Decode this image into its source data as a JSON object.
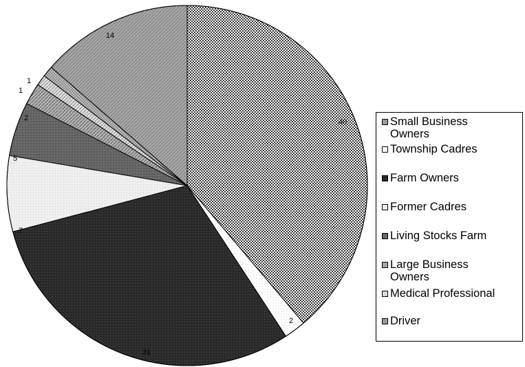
{
  "chart_data": {
    "type": "pie",
    "slices": [
      {
        "label": "Small Business Owners",
        "value": 40,
        "value_label": "40"
      },
      {
        "label": "Township Cadres",
        "value": 2,
        "value_label": "2"
      },
      {
        "label": "Farm Owners",
        "value": 31,
        "value_label": "31"
      },
      {
        "label": "Former Cadres",
        "value": 7,
        "value_label": "7"
      },
      {
        "label": "Living Stocks Farm",
        "value": 5,
        "value_label": "5"
      },
      {
        "label": "Large Business Owners",
        "value": 2,
        "value_label": "2"
      },
      {
        "label": "Medical Professional",
        "value": 1,
        "value_label": "1"
      },
      {
        "label": "Driver",
        "value": 1,
        "value_label": "1"
      },
      {
        "label": "",
        "value": 14,
        "value_label": "14"
      }
    ],
    "legend_placement": "right",
    "legend": [
      {
        "label": "Small Business Owners",
        "lines": [
          "Small Business",
          "Owners"
        ],
        "pattern": "checker-dense"
      },
      {
        "label": "Township Cadres",
        "lines": [
          "Township Cadres"
        ],
        "pattern": "white"
      },
      {
        "label": "Farm Owners",
        "lines": [
          "Farm Owners"
        ],
        "pattern": "black"
      },
      {
        "label": "Former Cadres",
        "lines": [
          "Former Cadres"
        ],
        "pattern": "light"
      },
      {
        "label": "Living Stocks Farm",
        "lines": [
          "Living Stocks Farm"
        ],
        "pattern": "dark-grey"
      },
      {
        "label": "Large Business Owners",
        "lines": [
          "Large Business",
          "Owners"
        ],
        "pattern": "grey-diag"
      },
      {
        "label": "Medical Professional",
        "lines": [
          "Medical Professional"
        ],
        "pattern": "light-diag"
      },
      {
        "label": "Driver",
        "lines": [
          "Driver"
        ],
        "pattern": "grey-checker"
      }
    ],
    "colors": {
      "small_business": "#7a7a7a",
      "township_cadres": "#ffffff",
      "farm_owners": "#2e2e2e",
      "former_cadres": "#e6e6e6",
      "living_stocks": "#6e6e6e",
      "large_business": "#a6a6a6",
      "medical": "#c8c8c8",
      "driver": "#9a9a9a",
      "last": "#a0a0a0"
    }
  }
}
